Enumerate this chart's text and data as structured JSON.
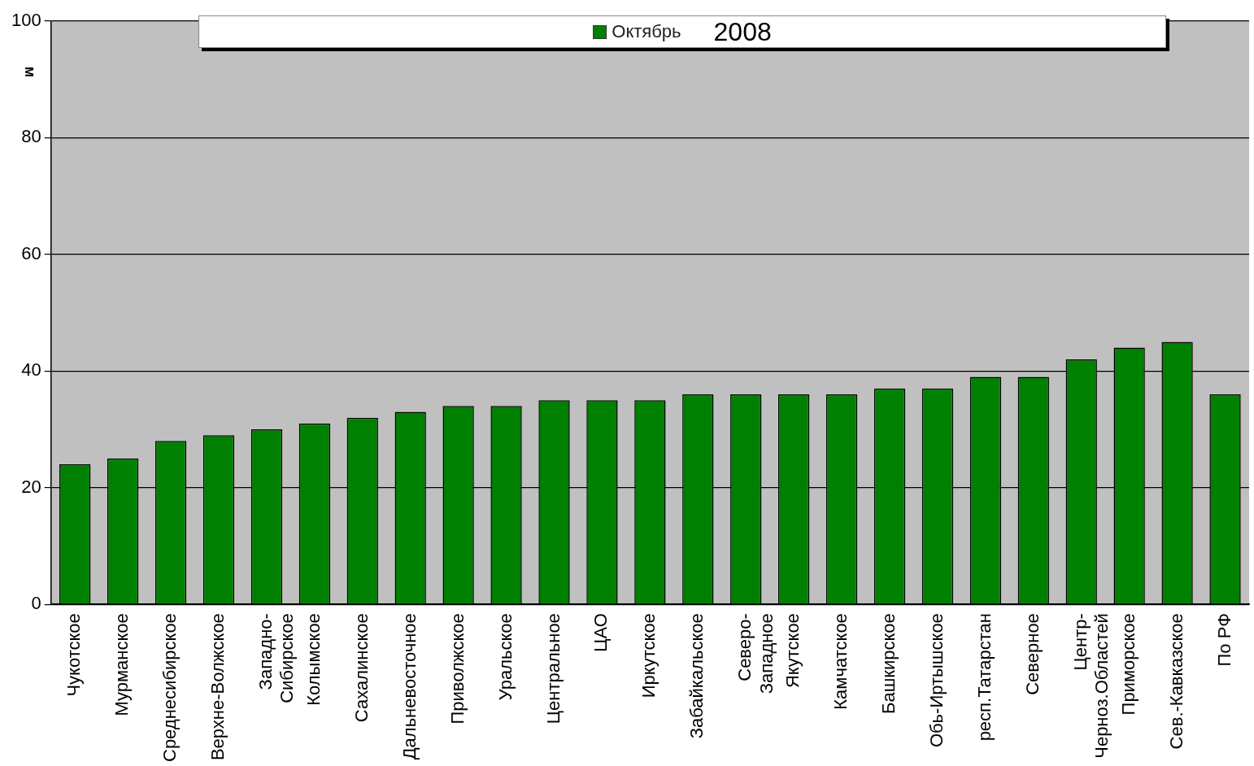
{
  "chart_data": {
    "type": "bar",
    "title": "2008",
    "ylabel": "м",
    "categories": [
      "Чукотское",
      "Мурманское",
      "Среднесибирское",
      "Верхне-Волжское",
      "Западно-\nСибирское",
      "Колымское",
      "Сахалинское",
      "Дальневосточное",
      "Приволжское",
      "Уральское",
      "Центральное",
      "ЦАО",
      "Иркутское",
      "Забайкальское",
      "Северо-\nЗападное",
      "Якутское",
      "Камчатское",
      "Башкирское",
      "Обь-Иртышское",
      "респ.Татарстан",
      "Северное",
      "Центр-\nЧерноз.Областей",
      "Приморское",
      "Сев.-Кавказское",
      "По РФ"
    ],
    "series": [
      {
        "name": "Октябрь",
        "color": "#008000",
        "values": [
          24,
          25,
          28,
          29,
          30,
          31,
          32,
          33,
          34,
          34,
          35,
          35,
          35,
          36,
          36,
          36,
          36,
          37,
          37,
          39,
          39,
          42,
          44,
          45,
          36
        ]
      }
    ],
    "ylim": [
      0,
      100
    ],
    "yticks": [
      0,
      20,
      40,
      60,
      80,
      100
    ],
    "grid": "y",
    "legend": "top"
  }
}
